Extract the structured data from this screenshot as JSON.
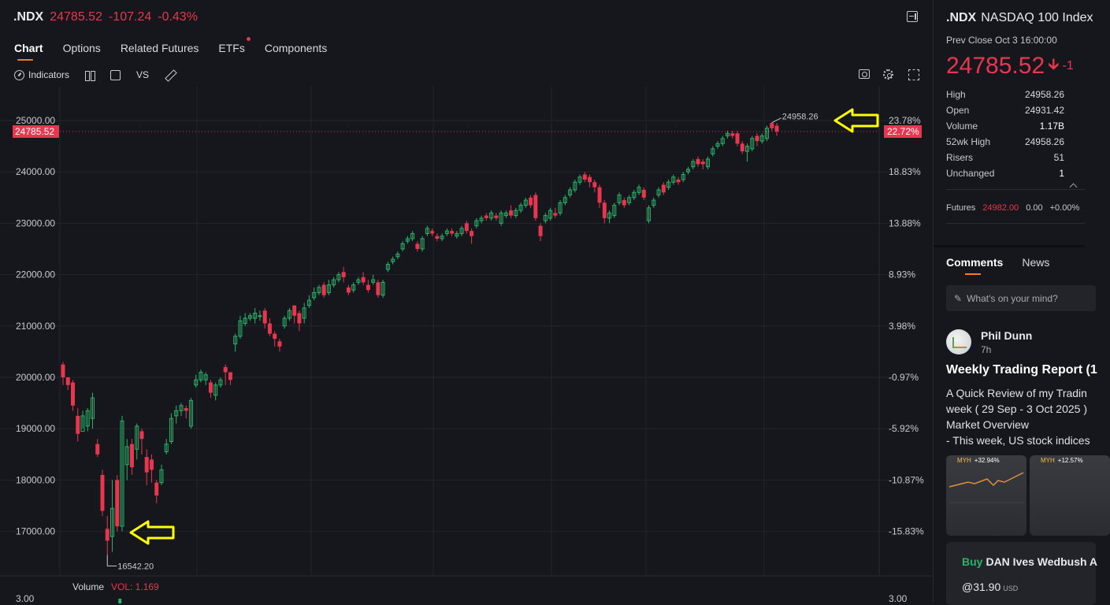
{
  "header": {
    "symbol": ".NDX",
    "price": "24785.52",
    "change": "-107.24",
    "change_pct": "-0.43%"
  },
  "tabs": [
    {
      "label": "Chart",
      "active": true
    },
    {
      "label": "Options"
    },
    {
      "label": "Related Futures"
    },
    {
      "label": "ETFs",
      "badge": true
    },
    {
      "label": "Components"
    }
  ],
  "toolbar": {
    "indicators": "Indicators",
    "vs": "VS",
    "icons": [
      "indicators-icon",
      "candle-type-icon",
      "rectangle-icon",
      "draw-pencil-icon",
      "camera-icon",
      "settings-gear-icon",
      "fullscreen-icon"
    ]
  },
  "colors": {
    "up": "#29b36b",
    "down": "#e8364f",
    "accent": "#ff7a1a",
    "annotation": "#ffff00"
  },
  "chart_data": {
    "type": "candlestick",
    "y_ticks": [
      "25000.00",
      "24000.00",
      "23000.00",
      "22000.00",
      "21000.00",
      "20000.00",
      "19000.00",
      "18000.00",
      "17000.00"
    ],
    "y_tick_values": [
      25000,
      24000,
      23000,
      22000,
      21000,
      20000,
      19000,
      18000,
      17000
    ],
    "right_ticks": [
      "23.78%",
      "18.83%",
      "13.88%",
      "8.93%",
      "3.98%",
      "-0.97%",
      "-5.92%",
      "-10.87%",
      "-15.83%"
    ],
    "ylim": [
      16300,
      25500
    ],
    "current_price_label": "24785.52",
    "current_price": 24785.52,
    "current_pct_label": "22.72%",
    "high_label": "24958.26",
    "high_value": 24958.26,
    "low_label": "16542.20",
    "low_value": 16542.2,
    "volume_label": "Volume",
    "vol_label": "VOL: 1.169",
    "vol_left_tick": "3.00",
    "vol_right_tick": "3.00",
    "candles": [
      [
        20250,
        20000,
        20300,
        19850
      ],
      [
        20000,
        19850,
        20000,
        19750
      ],
      [
        19900,
        19450,
        19950,
        19350
      ],
      [
        19250,
        18900,
        19400,
        18750
      ],
      [
        18950,
        19250,
        19350,
        19000
      ],
      [
        19050,
        19350,
        19400,
        18950
      ],
      [
        19200,
        19600,
        19700,
        19000
      ],
      [
        18700,
        18500,
        18800,
        18450
      ],
      [
        18100,
        17400,
        18200,
        17300
      ],
      [
        17050,
        16820,
        17300,
        16542.2
      ],
      [
        16900,
        17450,
        18000,
        16600
      ],
      [
        18000,
        17100,
        18100,
        17000
      ],
      [
        17100,
        19150,
        19250,
        17000
      ],
      [
        18300,
        18650,
        18800,
        18000
      ],
      [
        18700,
        18250,
        18800,
        18100
      ],
      [
        18600,
        19050,
        19100,
        18400
      ],
      [
        18950,
        18800,
        19000,
        18500
      ],
      [
        18450,
        18150,
        18600,
        17900
      ],
      [
        18400,
        18200,
        18500,
        17950
      ],
      [
        17950,
        17700,
        18000,
        17550
      ],
      [
        17950,
        18200,
        18300,
        17900
      ],
      [
        18550,
        18700,
        18800,
        18500
      ],
      [
        18750,
        19200,
        19300,
        18700
      ],
      [
        19250,
        19350,
        19450,
        19100
      ],
      [
        19350,
        19450,
        19500,
        19250
      ],
      [
        19400,
        19350,
        19450,
        19200
      ],
      [
        19050,
        19550,
        19600,
        19000
      ],
      [
        19850,
        19950,
        20050,
        19800
      ],
      [
        19950,
        20100,
        20150,
        19900
      ],
      [
        19950,
        20050,
        20100,
        19850
      ],
      [
        19900,
        19700,
        19950,
        19600
      ],
      [
        19650,
        19850,
        19900,
        19550
      ],
      [
        19850,
        19950,
        20000,
        19800
      ],
      [
        20200,
        20100,
        20250,
        19850
      ],
      [
        20100,
        19950,
        20100,
        19850
      ],
      [
        20650,
        20800,
        20850,
        20500
      ],
      [
        20800,
        21100,
        21200,
        20750
      ],
      [
        21050,
        21150,
        21250,
        21000
      ],
      [
        21150,
        21200,
        21250,
        21100
      ],
      [
        21150,
        21250,
        21350,
        21050
      ],
      [
        21200,
        21200,
        21300,
        21100
      ],
      [
        21300,
        21050,
        21350,
        20950
      ],
      [
        21050,
        20850,
        21150,
        20800
      ],
      [
        20850,
        20750,
        20900,
        20600
      ],
      [
        20700,
        20600,
        20750,
        20500
      ],
      [
        21000,
        21150,
        21200,
        20950
      ],
      [
        21150,
        21300,
        21350,
        21100
      ],
      [
        21400,
        21200,
        21400,
        21050
      ],
      [
        21250,
        21050,
        21300,
        20900
      ],
      [
        21150,
        21350,
        21450,
        21050
      ],
      [
        21400,
        21500,
        21600,
        21350
      ],
      [
        21550,
        21650,
        21750,
        21500
      ],
      [
        21650,
        21750,
        21800,
        21600
      ],
      [
        21800,
        21600,
        21850,
        21550
      ],
      [
        21650,
        21800,
        21900,
        21600
      ],
      [
        21800,
        21900,
        21950,
        21750
      ],
      [
        21900,
        22000,
        22050,
        21850
      ],
      [
        22050,
        21950,
        22150,
        21850
      ],
      [
        21750,
        21650,
        21800,
        21600
      ],
      [
        21700,
        21800,
        21850,
        21650
      ],
      [
        21850,
        21900,
        21950,
        21800
      ],
      [
        21950,
        21850,
        22050,
        21800
      ],
      [
        21800,
        21700,
        21900,
        21650
      ],
      [
        21850,
        21900,
        22000,
        21800
      ],
      [
        21850,
        21600,
        21900,
        21550
      ],
      [
        21600,
        21850,
        21900,
        21550
      ],
      [
        22100,
        22200,
        22250,
        22050
      ],
      [
        22250,
        22300,
        22350,
        22200
      ],
      [
        22350,
        22400,
        22450,
        22300
      ],
      [
        22500,
        22600,
        22650,
        22450
      ],
      [
        22650,
        22700,
        22750,
        22600
      ],
      [
        22700,
        22800,
        22850,
        22650
      ],
      [
        22600,
        22500,
        22650,
        22450
      ],
      [
        22500,
        22700,
        22750,
        22450
      ],
      [
        22800,
        22900,
        22950,
        22750
      ],
      [
        22850,
        22800,
        22900,
        22750
      ],
      [
        22750,
        22700,
        22800,
        22650
      ],
      [
        22700,
        22750,
        22800,
        22650
      ],
      [
        22800,
        22850,
        22900,
        22750
      ],
      [
        22850,
        22800,
        22900,
        22750
      ],
      [
        22750,
        22800,
        22850,
        22700
      ],
      [
        22800,
        22900,
        22950,
        22750
      ],
      [
        23000,
        22850,
        23050,
        22800
      ],
      [
        22850,
        22750,
        22900,
        22600
      ],
      [
        22950,
        23050,
        23100,
        22900
      ],
      [
        23050,
        23100,
        23150,
        23000
      ],
      [
        23150,
        23100,
        23200,
        23050
      ],
      [
        23100,
        23200,
        23250,
        23050
      ],
      [
        23150,
        23100,
        23200,
        23050
      ],
      [
        23000,
        23200,
        23250,
        22950
      ],
      [
        23150,
        23200,
        23250,
        23100
      ],
      [
        23250,
        23150,
        23350,
        23100
      ],
      [
        23150,
        23250,
        23300,
        23100
      ],
      [
        23250,
        23350,
        23400,
        23200
      ],
      [
        23350,
        23450,
        23500,
        23300
      ],
      [
        23500,
        23350,
        23550,
        23300
      ],
      [
        23550,
        23100,
        23600,
        23050
      ],
      [
        22950,
        22750,
        23000,
        22650
      ],
      [
        23050,
        23150,
        23200,
        23000
      ],
      [
        23100,
        23250,
        23300,
        23050
      ],
      [
        23200,
        23150,
        23300,
        23100
      ],
      [
        23200,
        23400,
        23450,
        23150
      ],
      [
        23400,
        23500,
        23550,
        23350
      ],
      [
        23550,
        23650,
        23700,
        23500
      ],
      [
        23650,
        23800,
        23850,
        23600
      ],
      [
        23800,
        23900,
        23950,
        23750
      ],
      [
        23950,
        23850,
        24000,
        23800
      ],
      [
        23900,
        23800,
        23950,
        23700
      ],
      [
        23800,
        23700,
        23850,
        23600
      ],
      [
        23700,
        23400,
        23750,
        23300
      ],
      [
        23400,
        23100,
        23450,
        23000
      ],
      [
        23100,
        23200,
        23250,
        23000
      ],
      [
        23150,
        23350,
        23400,
        23100
      ],
      [
        23400,
        23550,
        23600,
        23350
      ],
      [
        23450,
        23350,
        23500,
        23300
      ],
      [
        23400,
        23500,
        23550,
        23350
      ],
      [
        23500,
        23600,
        23650,
        23450
      ],
      [
        23600,
        23700,
        23750,
        23550
      ],
      [
        23650,
        23500,
        23700,
        23450
      ],
      [
        23050,
        23300,
        23350,
        23000
      ],
      [
        23350,
        23450,
        23500,
        23300
      ],
      [
        23550,
        23650,
        23700,
        23500
      ],
      [
        23750,
        23600,
        23800,
        23550
      ],
      [
        23700,
        23800,
        23850,
        23650
      ],
      [
        23800,
        23900,
        23950,
        23750
      ],
      [
        23850,
        23800,
        23900,
        23750
      ],
      [
        23850,
        23950,
        24000,
        23800
      ],
      [
        24000,
        24050,
        24100,
        23950
      ],
      [
        24100,
        24200,
        24250,
        24050
      ],
      [
        24250,
        24150,
        24300,
        24100
      ],
      [
        24200,
        24150,
        24250,
        24050
      ],
      [
        24100,
        24250,
        24300,
        24050
      ],
      [
        24350,
        24450,
        24500,
        24300
      ],
      [
        24500,
        24550,
        24600,
        24450
      ],
      [
        24550,
        24650,
        24700,
        24500
      ],
      [
        24700,
        24750,
        24800,
        24650
      ],
      [
        24750,
        24700,
        24800,
        24650
      ],
      [
        24750,
        24550,
        24800,
        24500
      ],
      [
        24550,
        24400,
        24600,
        24350
      ],
      [
        24400,
        24500,
        24550,
        24200
      ],
      [
        24450,
        24650,
        24700,
        24400
      ],
      [
        24700,
        24600,
        24750,
        24500
      ],
      [
        24600,
        24700,
        24750,
        24550
      ],
      [
        24650,
        24850,
        24900,
        24600
      ],
      [
        24950,
        24850,
        24958.26,
        24800
      ],
      [
        24900,
        24785.52,
        24950,
        24700
      ]
    ],
    "volume_bar_index": 9
  },
  "right_panel": {
    "title_symbol": ".NDX",
    "title_name": "NASDAQ 100 Index",
    "prev_close": "Prev Close Oct 3 16:00:00",
    "price": "24785.52",
    "change_short": "-1",
    "stats": [
      {
        "label": "High",
        "value": "24958.26",
        "color": "green"
      },
      {
        "label": "Open",
        "value": "24931.42",
        "color": "green"
      },
      {
        "label": "Volume",
        "value": "1.17B",
        "color": "white"
      },
      {
        "label": "52wk High",
        "value": "24958.26",
        "color": "green"
      },
      {
        "label": "Risers",
        "value": "51",
        "color": "green"
      },
      {
        "label": "Unchanged",
        "value": "1",
        "color": "white"
      }
    ],
    "futures_label": "Futures",
    "futures_price": "24982.00",
    "futures_change": "0.00",
    "futures_pct": "+0.00%",
    "tabs": [
      {
        "label": "Comments",
        "active": true
      },
      {
        "label": "News"
      }
    ],
    "post_placeholder": "What's on your mind?",
    "post": {
      "author": "Phil Dunn",
      "time": "7h",
      "title": "Weekly Trading Report (1",
      "lines": [
        "A Quick Review of my Tradin",
        "week ( 29 Sep - 3 Oct 2025 )",
        "Market Overview",
        "- This week, US stock indices"
      ],
      "thumb1_tag": "+32.94%",
      "thumb2_tag": "+12.57%",
      "thumb_ticker": "MYH"
    },
    "promo": {
      "buy": "Buy",
      "text": "DAN Ives Wedbush A",
      "price": "@31.90",
      "currency": "USD"
    }
  }
}
